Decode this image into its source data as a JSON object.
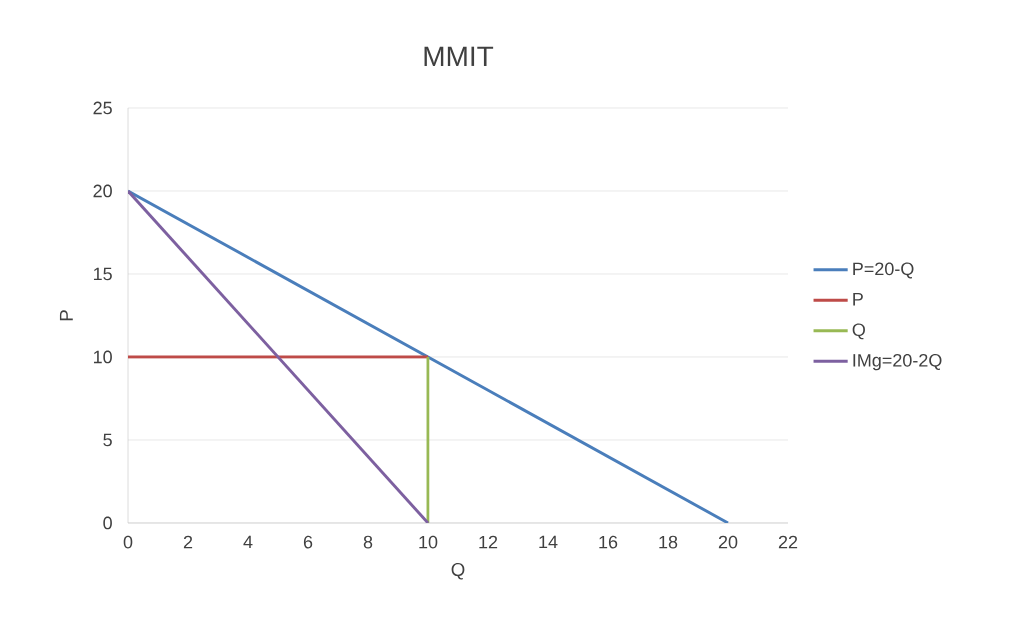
{
  "chart_data": {
    "type": "line",
    "title": "MMIT",
    "xlabel": "Q",
    "ylabel": "P",
    "xlim": [
      0,
      22
    ],
    "xticks": [
      0,
      2,
      4,
      6,
      8,
      10,
      12,
      14,
      16,
      18,
      20,
      22
    ],
    "ylim": [
      0,
      25
    ],
    "yticks": [
      0,
      5,
      10,
      15,
      20,
      25
    ],
    "grid": "y",
    "legend": "right",
    "line_style": "solid",
    "series": [
      {
        "name": "P=20-Q",
        "color": "#4a7ebb",
        "x": [
          0,
          20
        ],
        "values": [
          20,
          0
        ]
      },
      {
        "name": "P",
        "color": "#be4b48",
        "x": [
          0,
          10
        ],
        "values": [
          10,
          10
        ]
      },
      {
        "name": "Q",
        "color": "#98b954",
        "x": [
          10,
          10
        ],
        "values": [
          0,
          10
        ]
      },
      {
        "name": "IMg=20-2Q",
        "color": "#7d60a0",
        "x": [
          0,
          10
        ],
        "values": [
          20,
          0
        ]
      }
    ]
  }
}
